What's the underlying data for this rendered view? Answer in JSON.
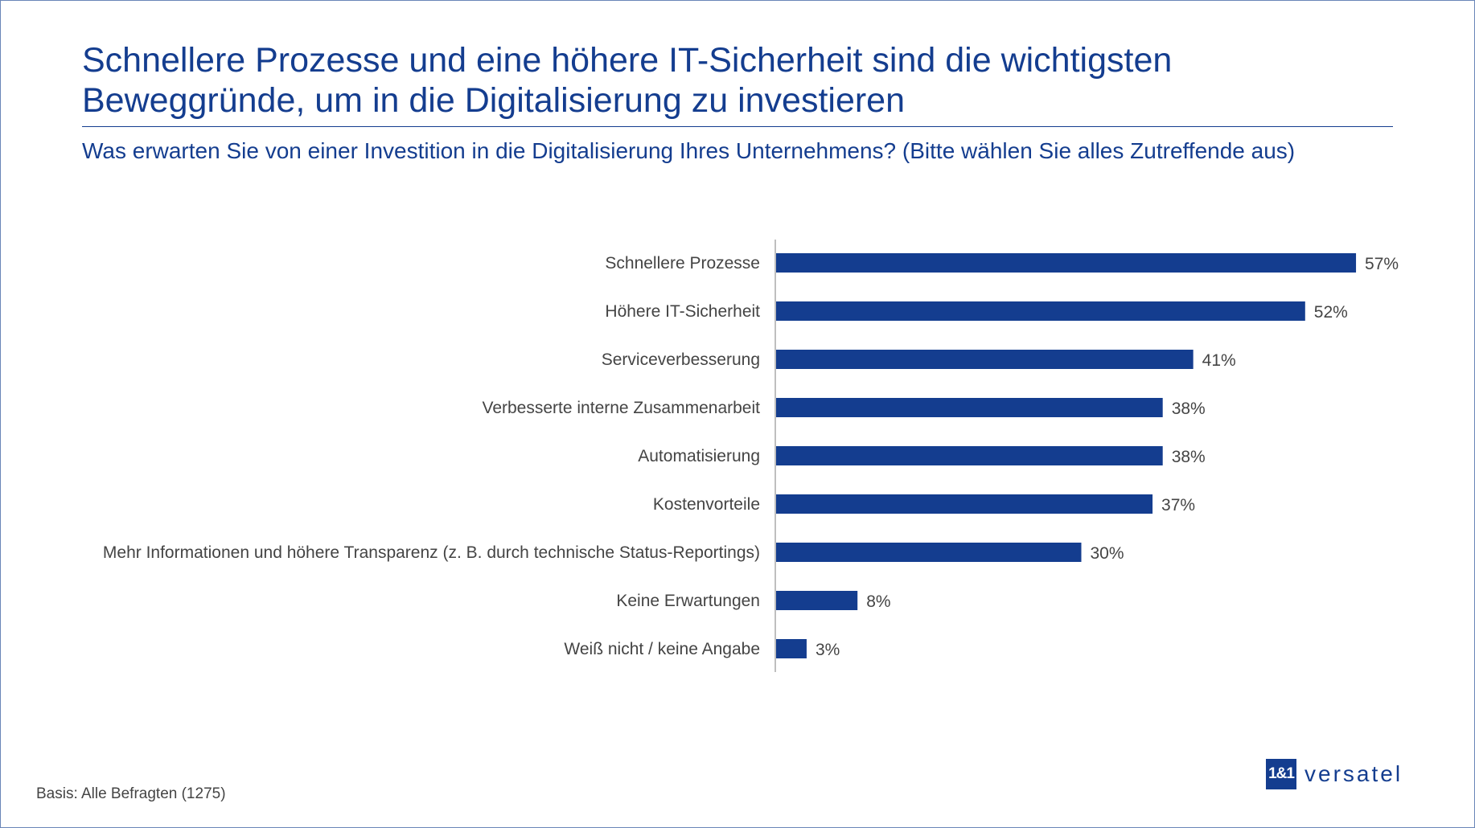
{
  "title": "Schnellere Prozesse und eine höhere IT-Sicherheit sind die wichtigsten Beweggründe, um in die Digitalisierung zu investieren",
  "subtitle": "Was erwarten Sie von einer Investition in die Digitalisierung Ihres Unternehmens? (Bitte wählen Sie alles Zutreffende aus)",
  "basis": "Basis: Alle Befragten (1275)",
  "logo": {
    "box": "1&1",
    "text": "versatel"
  },
  "colors": {
    "bar": "#143d8f",
    "text": "#143d8f",
    "label": "#444444"
  },
  "chart_data": {
    "type": "bar",
    "orientation": "horizontal",
    "categories": [
      "Schnellere Prozesse",
      "Höhere IT-Sicherheit",
      "Serviceverbesserung",
      "Verbesserte interne Zusammenarbeit",
      "Automatisierung",
      "Kostenvorteile",
      "Mehr Informationen und höhere Transparenz (z. B. durch technische Status-Reportings)",
      "Keine Erwartungen",
      "Weiß nicht / keine Angabe"
    ],
    "values": [
      57,
      52,
      41,
      38,
      38,
      37,
      30,
      8,
      3
    ],
    "value_labels": [
      "57%",
      "52%",
      "41%",
      "38%",
      "38%",
      "37%",
      "30%",
      "8%",
      "3%"
    ],
    "unit": "%",
    "grid": false
  }
}
